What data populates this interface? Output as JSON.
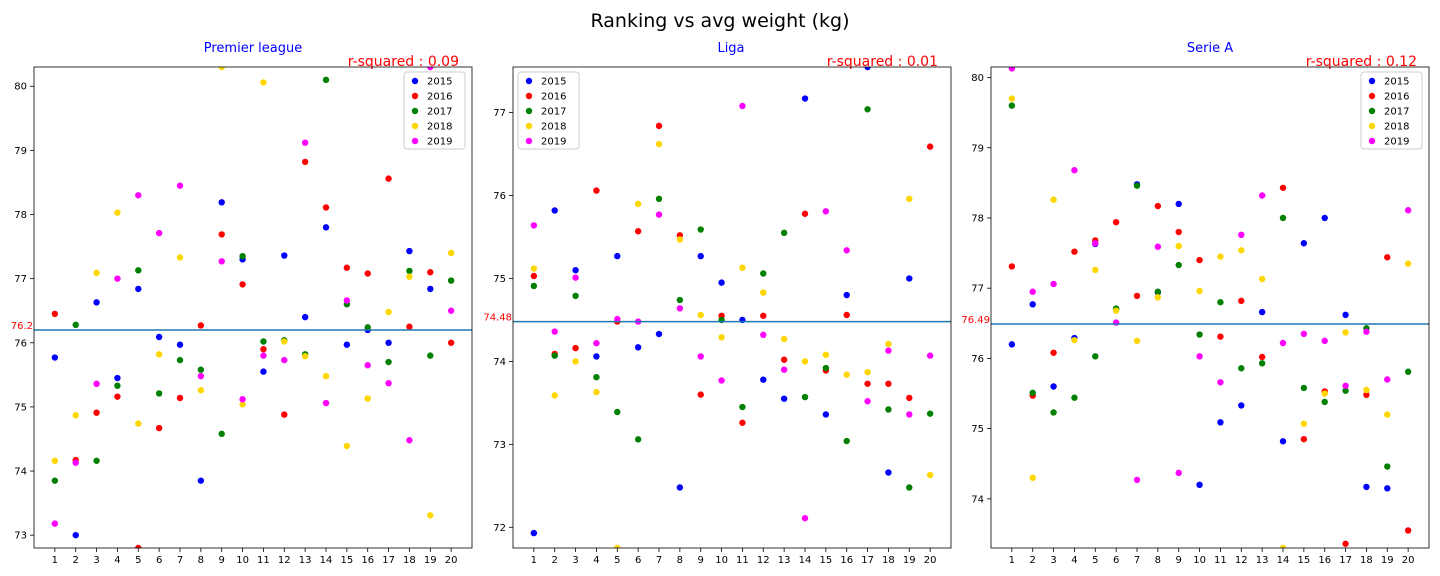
{
  "figure": {
    "suptitle": "Ranking vs avg weight (kg)"
  },
  "legend_labels": [
    "2015",
    "2016",
    "2017",
    "2018",
    "2019"
  ],
  "colors": {
    "2015": "#0000ff",
    "2016": "#ff0000",
    "2017": "#008000",
    "2018": "#ffd700",
    "2019": "#ff00ff",
    "mean_line": "#1f77b4",
    "title": "#0000ff",
    "rsquared": "#ff0000"
  },
  "chart_data": [
    {
      "type": "scatter",
      "title": "Premier league",
      "r_squared": "r-squared : 0.09",
      "mean_label": "76.2",
      "mean": 76.2,
      "legend_placement": "top-right",
      "xlim": [
        0.0,
        21.0
      ],
      "ylim": [
        72.8,
        80.3
      ],
      "x": [
        1,
        2,
        3,
        4,
        5,
        6,
        7,
        8,
        9,
        10,
        11,
        12,
        13,
        14,
        15,
        16,
        17,
        18,
        19,
        20
      ],
      "x_tick_labels": [
        "1",
        "2",
        "3",
        "4",
        "5",
        "6",
        "7",
        "8",
        "9",
        "10",
        "11",
        "12",
        "13",
        "14",
        "15",
        "16",
        "17",
        "18",
        "19",
        "20"
      ],
      "y_ticks": [
        73,
        74,
        75,
        76,
        77,
        78,
        79,
        80
      ],
      "y_tick_labels": [
        "73",
        "74",
        "75",
        "76",
        "77",
        "78",
        "79",
        "80"
      ],
      "series": [
        {
          "name": "2015",
          "values": [
            75.77,
            73.0,
            76.63,
            75.45,
            76.84,
            76.09,
            75.97,
            73.85,
            78.19,
            77.3,
            75.55,
            77.36,
            76.4,
            77.8,
            75.97,
            76.2,
            76.0,
            77.43,
            76.84,
            null
          ]
        },
        {
          "name": "2016",
          "values": [
            76.45,
            74.17,
            74.91,
            75.16,
            72.8,
            74.67,
            75.14,
            76.27,
            77.69,
            76.91,
            75.9,
            74.88,
            78.82,
            78.11,
            77.17,
            77.08,
            78.56,
            76.25,
            77.1,
            76.0
          ]
        },
        {
          "name": "2017",
          "values": [
            73.85,
            76.28,
            74.16,
            75.33,
            77.13,
            75.21,
            75.73,
            75.58,
            74.58,
            77.35,
            76.02,
            76.04,
            75.82,
            80.1,
            76.6,
            76.24,
            75.7,
            77.12,
            75.8,
            76.97
          ]
        },
        {
          "name": "2018",
          "values": [
            74.16,
            74.87,
            77.09,
            78.03,
            74.74,
            75.82,
            77.33,
            75.26,
            80.3,
            75.04,
            80.06,
            76.02,
            75.79,
            75.48,
            74.39,
            75.13,
            76.48,
            77.03,
            73.31,
            77.4
          ]
        },
        {
          "name": "2019",
          "values": [
            73.18,
            74.13,
            75.36,
            77.0,
            78.3,
            77.71,
            78.45,
            75.48,
            77.27,
            75.12,
            75.8,
            75.73,
            79.12,
            75.06,
            76.66,
            75.65,
            75.37,
            74.48,
            80.3,
            76.5
          ]
        }
      ]
    },
    {
      "type": "scatter",
      "title": "Liga",
      "r_squared": "r-squared : 0.01",
      "mean_label": "74.48",
      "mean": 74.48,
      "legend_placement": "top-left",
      "xlim": [
        0.0,
        21.0
      ],
      "ylim": [
        71.75,
        77.55
      ],
      "x": [
        1,
        2,
        3,
        4,
        5,
        6,
        7,
        8,
        9,
        10,
        11,
        12,
        13,
        14,
        15,
        16,
        17,
        18,
        19,
        20
      ],
      "x_tick_labels": [
        "1",
        "2",
        "3",
        "4",
        "5",
        "6",
        "7",
        "8",
        "9",
        "10",
        "11",
        "12",
        "13",
        "14",
        "15",
        "16",
        "17",
        "18",
        "19",
        "20"
      ],
      "y_ticks": [
        72,
        73,
        74,
        75,
        76,
        77
      ],
      "y_tick_labels": [
        "72",
        "73",
        "74",
        "75",
        "76",
        "77"
      ],
      "series": [
        {
          "name": "2015",
          "values": [
            71.93,
            75.82,
            75.1,
            74.06,
            75.27,
            74.17,
            74.33,
            72.48,
            75.27,
            74.95,
            74.5,
            73.78,
            73.55,
            77.17,
            73.36,
            74.8,
            77.55,
            72.66,
            75.0,
            null
          ]
        },
        {
          "name": "2016",
          "values": [
            75.03,
            74.09,
            74.16,
            76.06,
            74.48,
            75.57,
            76.84,
            75.52,
            73.6,
            74.55,
            73.26,
            74.55,
            74.02,
            75.78,
            73.89,
            74.56,
            73.73,
            73.73,
            73.56,
            76.59
          ]
        },
        {
          "name": "2017",
          "values": [
            74.91,
            74.07,
            74.79,
            73.81,
            73.39,
            73.06,
            75.96,
            74.74,
            75.59,
            74.5,
            73.45,
            75.06,
            75.55,
            73.57,
            73.92,
            73.04,
            77.04,
            73.42,
            72.48,
            73.37
          ]
        },
        {
          "name": "2018",
          "values": [
            75.12,
            73.59,
            74.0,
            73.63,
            71.75,
            75.9,
            76.62,
            75.47,
            74.56,
            74.29,
            75.13,
            74.83,
            74.27,
            74.0,
            74.08,
            73.84,
            73.87,
            74.21,
            75.96,
            72.63
          ]
        },
        {
          "name": "2019",
          "values": [
            75.64,
            74.36,
            75.01,
            74.22,
            74.51,
            74.48,
            75.77,
            74.64,
            74.06,
            73.77,
            77.08,
            74.32,
            73.9,
            72.11,
            75.81,
            75.34,
            73.52,
            74.13,
            73.36,
            74.07
          ]
        }
      ]
    },
    {
      "type": "scatter",
      "title": "Serie A",
      "r_squared": "r-squared : 0.12",
      "mean_label": "76.49",
      "mean": 76.49,
      "legend_placement": "top-right",
      "xlim": [
        0.0,
        21.0
      ],
      "ylim": [
        73.3,
        80.15
      ],
      "x": [
        1,
        2,
        3,
        4,
        5,
        6,
        7,
        8,
        9,
        10,
        11,
        12,
        13,
        14,
        15,
        16,
        17,
        18,
        19,
        20
      ],
      "x_tick_labels": [
        "1",
        "2",
        "3",
        "4",
        "5",
        "6",
        "7",
        "8",
        "9",
        "10",
        "11",
        "12",
        "13",
        "14",
        "15",
        "16",
        "17",
        "18",
        "19",
        "20"
      ],
      "y_ticks": [
        74,
        75,
        76,
        77,
        78,
        79,
        80
      ],
      "y_tick_labels": [
        "74",
        "75",
        "76",
        "77",
        "78",
        "79",
        "80"
      ],
      "series": [
        {
          "name": "2015",
          "values": [
            76.2,
            76.77,
            75.6,
            76.29,
            77.63,
            76.7,
            78.48,
            76.94,
            78.2,
            74.2,
            75.09,
            75.33,
            76.66,
            74.82,
            77.64,
            78.0,
            76.62,
            74.17,
            74.15,
            null
          ]
        },
        {
          "name": "2016",
          "values": [
            77.31,
            75.47,
            76.08,
            77.52,
            77.68,
            77.94,
            76.89,
            78.17,
            77.8,
            77.4,
            76.31,
            76.82,
            76.02,
            78.43,
            74.85,
            75.53,
            73.36,
            75.48,
            77.44,
            73.55
          ]
        },
        {
          "name": "2017",
          "values": [
            79.6,
            75.51,
            75.23,
            75.44,
            76.03,
            76.71,
            78.46,
            76.95,
            77.33,
            76.34,
            76.8,
            75.86,
            75.93,
            78.0,
            75.58,
            75.38,
            75.54,
            76.43,
            74.46,
            75.81
          ]
        },
        {
          "name": "2018",
          "values": [
            79.7,
            74.3,
            78.26,
            76.26,
            77.26,
            76.68,
            76.25,
            76.87,
            77.6,
            76.96,
            77.45,
            77.54,
            77.13,
            73.3,
            75.07,
            75.5,
            76.37,
            75.55,
            75.2,
            77.35
          ]
        },
        {
          "name": "2019",
          "values": [
            80.13,
            76.95,
            77.06,
            78.68,
            77.64,
            76.51,
            74.27,
            77.59,
            74.37,
            76.03,
            75.66,
            77.76,
            78.32,
            76.22,
            76.35,
            76.25,
            75.61,
            76.38,
            75.7,
            78.11
          ]
        }
      ]
    }
  ]
}
